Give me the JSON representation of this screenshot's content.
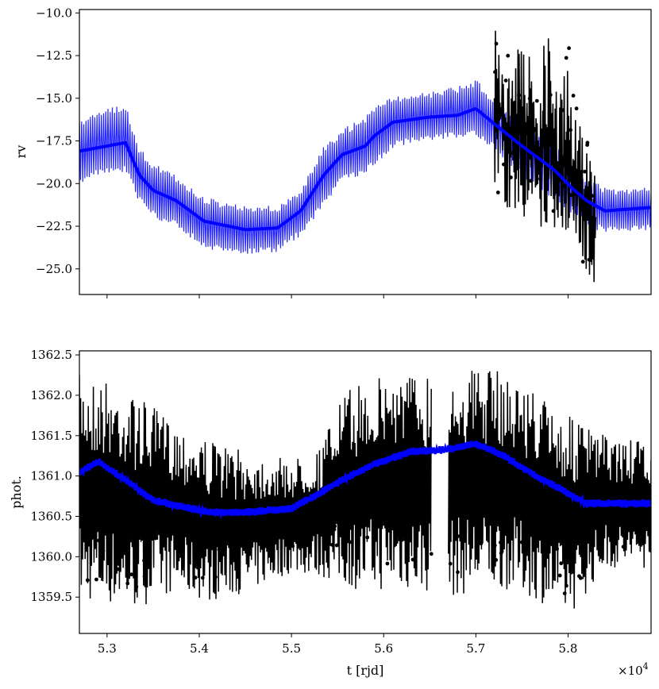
{
  "chart_data": [
    {
      "type": "line",
      "ylabel": "rv",
      "xlabel": "",
      "xlim": [
        52700,
        58900
      ],
      "ylim": [
        -26.5,
        -9.8
      ],
      "xticks": [
        53000,
        54000,
        55000,
        56000,
        57000,
        58000
      ],
      "show_xtick_labels": false,
      "yticks": [
        -25.0,
        -22.5,
        -20.0,
        -17.5,
        -15.0,
        -12.5,
        -10.0
      ],
      "ytick_labels": [
        "−25.0",
        "−22.5",
        "−20.0",
        "−17.5",
        "−15.0",
        "−12.5",
        "−10.0"
      ],
      "grid": false,
      "legend": "none",
      "series": [
        {
          "role": "model",
          "color": "#0000ff",
          "x": [
            52700,
            52900,
            53200,
            53350,
            53500,
            53750,
            54050,
            54500,
            54850,
            55100,
            55350,
            55550,
            55800,
            55900,
            56100,
            56500,
            56800,
            57000,
            57200,
            57500,
            57850,
            58050,
            58200,
            58400,
            58650,
            58900
          ],
          "y": [
            -18.1,
            -17.9,
            -17.6,
            -19.5,
            -20.4,
            -21.0,
            -22.2,
            -22.7,
            -22.6,
            -21.6,
            -19.5,
            -18.3,
            -17.8,
            -17.2,
            -16.4,
            -16.1,
            -16.0,
            -15.6,
            -16.5,
            -17.8,
            -19.2,
            -20.3,
            -21.0,
            -21.6,
            -21.5,
            -21.4
          ],
          "y_low": [
            -20.0,
            -19.5,
            -19.3,
            -21.1,
            -22.0,
            -22.6,
            -23.8,
            -24.2,
            -24.0,
            -23.1,
            -21.3,
            -19.9,
            -19.4,
            -19.0,
            -17.9,
            -17.5,
            -17.3,
            -17.2,
            -18.0,
            -19.6,
            -21.0,
            -21.8,
            -22.5,
            -22.9,
            -22.8,
            -22.8
          ],
          "y_high": [
            -16.3,
            -15.8,
            -15.3,
            -17.9,
            -18.8,
            -19.5,
            -20.8,
            -21.3,
            -21.3,
            -20.3,
            -17.8,
            -16.8,
            -16.1,
            -15.4,
            -14.9,
            -14.6,
            -14.3,
            -13.9,
            -15.0,
            -16.2,
            -17.5,
            -18.9,
            -19.6,
            -20.2,
            -20.3,
            -20.2
          ]
        },
        {
          "role": "data",
          "color": "#000000",
          "x": [
            57200,
            57350,
            57500,
            57650,
            57800,
            57900,
            58000,
            58100,
            58200,
            58300
          ],
          "y": [
            -15.0,
            -17.0,
            -16.5,
            -18.0,
            -17.5,
            -19.5,
            -18.5,
            -20.0,
            -21.5,
            -22.5
          ],
          "y_min": [
            -21.0,
            -21.5,
            -22.0,
            -22.5,
            -23.0,
            -22.5,
            -23.0,
            -23.5,
            -25.5,
            -26.2
          ],
          "y_max": [
            -10.5,
            -12.3,
            -11.8,
            -13.0,
            -11.0,
            -13.5,
            -11.3,
            -13.5,
            -17.5,
            -18.5
          ]
        }
      ]
    },
    {
      "type": "line",
      "ylabel": "phot.",
      "xlabel": "t [rjd]",
      "xlim": [
        52700,
        58900
      ],
      "ylim": [
        1359.05,
        1362.55
      ],
      "xticks": [
        53000,
        54000,
        55000,
        56000,
        57000,
        58000
      ],
      "xtick_labels": [
        "5.3",
        "5.4",
        "5.5",
        "5.6",
        "5.7",
        "5.8"
      ],
      "x_offset_text": "×10",
      "x_offset_exponent": "4",
      "yticks": [
        1359.5,
        1360.0,
        1360.5,
        1361.0,
        1361.5,
        1362.0,
        1362.5
      ],
      "ytick_labels": [
        "1359.5",
        "1360.0",
        "1360.5",
        "1361.0",
        "1361.5",
        "1362.0",
        "1362.5"
      ],
      "grid": false,
      "legend": "none",
      "gap": [
        56520,
        56700
      ],
      "series": [
        {
          "role": "model",
          "color": "#0000ff",
          "x": [
            52700,
            52900,
            53200,
            53500,
            54100,
            54500,
            55000,
            55250,
            55550,
            55900,
            56300,
            56650,
            57000,
            57300,
            57650,
            57900,
            58200,
            58500,
            58900
          ],
          "y": [
            1361.05,
            1361.18,
            1360.95,
            1360.7,
            1360.55,
            1360.55,
            1360.6,
            1360.75,
            1360.95,
            1361.15,
            1361.3,
            1361.32,
            1361.4,
            1361.25,
            1361.0,
            1360.85,
            1360.66,
            1360.66,
            1360.66
          ]
        },
        {
          "role": "data",
          "color": "#000000",
          "x": [
            52700,
            53000,
            53300,
            53700,
            54100,
            54500,
            55000,
            55300,
            55550,
            55800,
            56100,
            56450,
            56750,
            57000,
            57300,
            57600,
            58000,
            58400,
            58900
          ],
          "y_min": [
            1359.45,
            1359.4,
            1359.35,
            1359.55,
            1359.45,
            1359.55,
            1359.8,
            1359.75,
            1359.65,
            1359.55,
            1359.6,
            1359.55,
            1359.5,
            1359.55,
            1359.6,
            1359.5,
            1359.25,
            1359.85,
            1359.85
          ],
          "y_max": [
            1362.25,
            1362.2,
            1362.0,
            1361.7,
            1361.45,
            1361.3,
            1361.2,
            1361.35,
            1362.0,
            1362.2,
            1362.3,
            1362.3,
            1362.35,
            1362.35,
            1362.3,
            1362.1,
            1361.75,
            1361.5,
            1361.4
          ]
        }
      ]
    }
  ]
}
